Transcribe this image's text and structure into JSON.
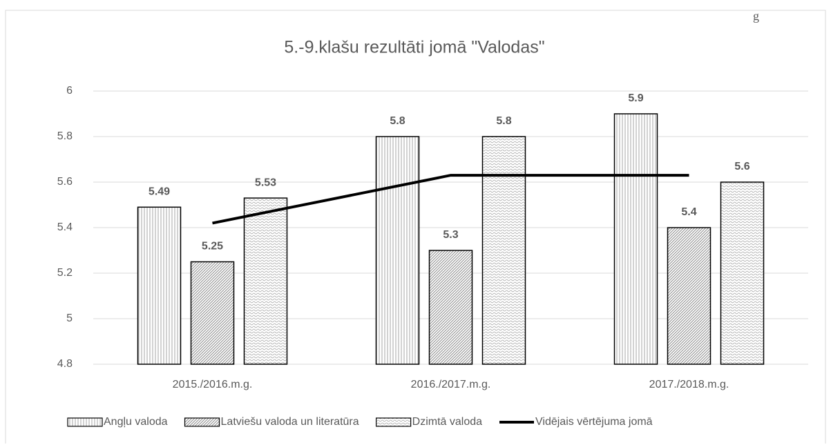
{
  "corner_text": "g",
  "chart_data": {
    "type": "bar_line",
    "title": "5.-9.klašu rezultāti jomā \"Valodas\"",
    "categories": [
      "2015./2016.m.g.",
      "2016./2017.m.g.",
      "2017./2018.m.g."
    ],
    "series": [
      {
        "name": "Angļu valoda",
        "type": "bar",
        "pattern": "vertical",
        "color": "#7f7f7f",
        "values": [
          5.49,
          5.8,
          5.9
        ]
      },
      {
        "name": "Latviešu valoda un literatūra",
        "type": "bar",
        "pattern": "diagonal",
        "color": "#7f7f7f",
        "values": [
          5.25,
          5.3,
          5.4
        ]
      },
      {
        "name": "Dzimtā valoda",
        "type": "bar",
        "pattern": "wave",
        "color": "#7f7f7f",
        "values": [
          5.53,
          5.8,
          5.6
        ]
      },
      {
        "name": "Vidējais vērtējuma jomā",
        "type": "line",
        "color": "#000000",
        "values": [
          5.42,
          5.63,
          5.63
        ]
      }
    ],
    "ylim": [
      4.8,
      6
    ],
    "yticks": [
      4.8,
      5,
      5.2,
      5.4,
      5.6,
      5.8,
      6
    ],
    "grid": true
  }
}
